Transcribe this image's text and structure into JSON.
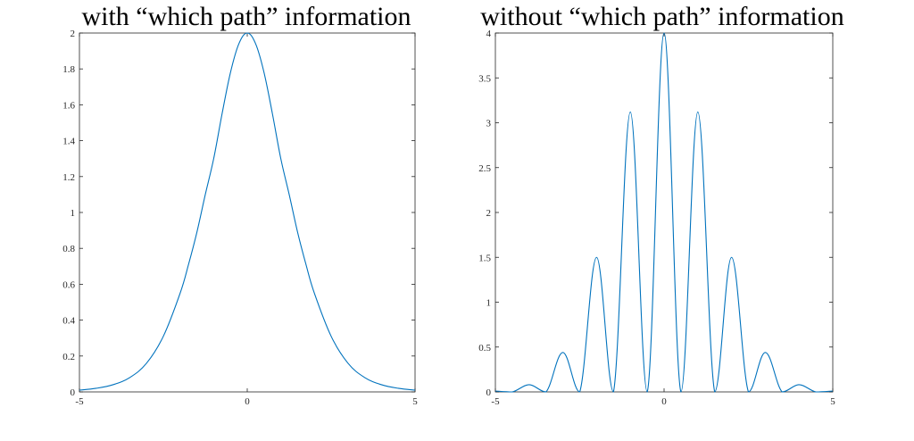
{
  "chart_data": [
    {
      "type": "line",
      "title": "with “which path” information",
      "xlabel": "",
      "ylabel": "",
      "xlim": [
        -5,
        5
      ],
      "ylim": [
        0,
        2
      ],
      "xticks": [
        -5,
        0,
        5
      ],
      "yticks": [
        0,
        0.2,
        0.4,
        0.6,
        0.8,
        1,
        1.2,
        1.4,
        1.6,
        1.8,
        2
      ],
      "grid": false,
      "line_color": "#0072BD",
      "x": [
        -5,
        -4.5,
        -4,
        -3.5,
        -3,
        -2.5,
        -2,
        -1.75,
        -1.5,
        -1.25,
        -1,
        -0.75,
        -0.5,
        -0.25,
        0,
        0.25,
        0.5,
        0.75,
        1,
        1.25,
        1.5,
        1.75,
        2,
        2.5,
        3,
        3.5,
        4,
        4.5,
        5
      ],
      "values": [
        0.01,
        0.02,
        0.04,
        0.08,
        0.16,
        0.31,
        0.55,
        0.71,
        0.89,
        1.1,
        1.3,
        1.55,
        1.78,
        1.94,
        2,
        1.94,
        1.78,
        1.55,
        1.3,
        1.1,
        0.89,
        0.71,
        0.55,
        0.31,
        0.16,
        0.08,
        0.04,
        0.02,
        0.01
      ]
    },
    {
      "type": "line",
      "title": "without “which path” information",
      "xlabel": "",
      "ylabel": "",
      "xlim": [
        -5,
        5
      ],
      "ylim": [
        0,
        4
      ],
      "xticks": [
        -5,
        0,
        5
      ],
      "yticks": [
        0,
        0.5,
        1,
        1.5,
        2,
        2.5,
        3,
        3.5,
        4
      ],
      "grid": false,
      "line_color": "#0072BD",
      "x": [
        -5,
        -4.5,
        -4,
        -3.5,
        -3,
        -2.5,
        -2,
        -1.5,
        -1,
        -0.5,
        0,
        0.5,
        1,
        1.5,
        2,
        2.5,
        3,
        3.5,
        4,
        4.5,
        5
      ],
      "values": [
        0.01,
        0,
        0.08,
        0,
        0.44,
        0,
        1.5,
        0,
        3.12,
        0,
        4,
        0,
        3.12,
        0,
        1.5,
        0,
        0.44,
        0,
        0.08,
        0,
        0.01
      ]
    }
  ]
}
